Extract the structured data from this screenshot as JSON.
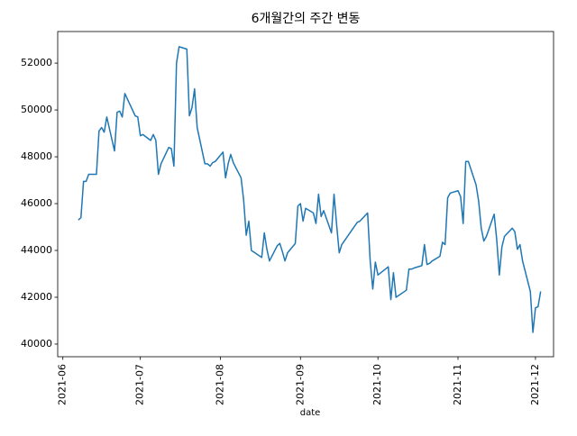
{
  "chart_data": {
    "type": "line",
    "title": "6개월간의 주간 변동",
    "x_label": "date",
    "color": "#1f77b4",
    "x": [
      "2021-06-07",
      "2021-06-08",
      "2021-06-09",
      "2021-06-10",
      "2021-06-11",
      "2021-06-14",
      "2021-06-15",
      "2021-06-16",
      "2021-06-17",
      "2021-06-18",
      "2021-06-21",
      "2021-06-22",
      "2021-06-23",
      "2021-06-24",
      "2021-06-25",
      "2021-06-29",
      "2021-06-30",
      "2021-07-01",
      "2021-07-02",
      "2021-07-05",
      "2021-07-06",
      "2021-07-07",
      "2021-07-08",
      "2021-07-09",
      "2021-07-12",
      "2021-07-13",
      "2021-07-14",
      "2021-07-15",
      "2021-07-16",
      "2021-07-19",
      "2021-07-20",
      "2021-07-21",
      "2021-07-22",
      "2021-07-23",
      "2021-07-26",
      "2021-07-27",
      "2021-07-28",
      "2021-07-29",
      "2021-07-30",
      "2021-08-02",
      "2021-08-03",
      "2021-08-04",
      "2021-08-05",
      "2021-08-06",
      "2021-08-09",
      "2021-08-10",
      "2021-08-11",
      "2021-08-12",
      "2021-08-13",
      "2021-08-17",
      "2021-08-18",
      "2021-08-19",
      "2021-08-20",
      "2021-08-23",
      "2021-08-24",
      "2021-08-25",
      "2021-08-26",
      "2021-08-27",
      "2021-08-30",
      "2021-08-31",
      "2021-09-01",
      "2021-09-02",
      "2021-09-03",
      "2021-09-06",
      "2021-09-07",
      "2021-09-08",
      "2021-09-09",
      "2021-09-10",
      "2021-09-13",
      "2021-09-14",
      "2021-09-15",
      "2021-09-16",
      "2021-09-17",
      "2021-09-23",
      "2021-09-24",
      "2021-09-27",
      "2021-09-28",
      "2021-09-29",
      "2021-09-30",
      "2021-10-01",
      "2021-10-05",
      "2021-10-06",
      "2021-10-07",
      "2021-10-08",
      "2021-10-12",
      "2021-10-13",
      "2021-10-14",
      "2021-10-15",
      "2021-10-18",
      "2021-10-19",
      "2021-10-20",
      "2021-10-21",
      "2021-10-22",
      "2021-10-25",
      "2021-10-26",
      "2021-10-27",
      "2021-10-28",
      "2021-10-29",
      "2021-11-01",
      "2021-11-02",
      "2021-11-03",
      "2021-11-04",
      "2021-11-05",
      "2021-11-08",
      "2021-11-09",
      "2021-11-10",
      "2021-11-11",
      "2021-11-12",
      "2021-11-15",
      "2021-11-16",
      "2021-11-17",
      "2021-11-18",
      "2021-11-19",
      "2021-11-22",
      "2021-11-23",
      "2021-11-24",
      "2021-11-25",
      "2021-11-26",
      "2021-11-29",
      "2021-11-30",
      "2021-12-01",
      "2021-12-02",
      "2021-12-03"
    ],
    "values": [
      45300,
      45400,
      46950,
      46950,
      47250,
      47250,
      49100,
      49250,
      49050,
      49700,
      48250,
      49900,
      49950,
      49700,
      50700,
      49750,
      49700,
      48900,
      48950,
      48700,
      48950,
      48700,
      47250,
      47700,
      48400,
      48350,
      47600,
      52000,
      52700,
      52600,
      49750,
      50100,
      50900,
      49250,
      47700,
      47700,
      47600,
      47750,
      47800,
      48200,
      47100,
      47700,
      48100,
      47750,
      47100,
      46150,
      44650,
      45250,
      44000,
      43700,
      44750,
      44050,
      43550,
      44200,
      44300,
      43950,
      43550,
      43900,
      44300,
      45900,
      46000,
      45250,
      45800,
      45600,
      45150,
      46400,
      45450,
      45700,
      44750,
      46400,
      45100,
      43900,
      44250,
      45200,
      45250,
      45600,
      43550,
      42350,
      43500,
      42950,
      43300,
      41900,
      43050,
      42000,
      42300,
      43200,
      43200,
      43250,
      43350,
      44250,
      43400,
      43450,
      43550,
      43750,
      44350,
      44250,
      46250,
      46450,
      46550,
      46300,
      45150,
      47800,
      47800,
      46800,
      46100,
      44950,
      44400,
      44600,
      45550,
      44450,
      42950,
      44150,
      44600,
      44950,
      44800,
      44050,
      44250,
      43550,
      42250,
      40500,
      41550,
      41600,
      42250
    ],
    "xlim": [
      "2021-05-30",
      "2021-12-08"
    ],
    "xticks": [
      {
        "value": "2021-06-01",
        "label": "2021-06"
      },
      {
        "value": "2021-07-01",
        "label": "2021-07"
      },
      {
        "value": "2021-08-01",
        "label": "2021-08"
      },
      {
        "value": "2021-09-01",
        "label": "2021-09"
      },
      {
        "value": "2021-10-01",
        "label": "2021-10"
      },
      {
        "value": "2021-11-01",
        "label": "2021-11"
      },
      {
        "value": "2021-12-01",
        "label": "2021-12"
      }
    ],
    "ylim": [
      39460,
      53350
    ],
    "yticks": [
      40000,
      42000,
      44000,
      46000,
      48000,
      50000,
      52000
    ],
    "grid": false
  }
}
